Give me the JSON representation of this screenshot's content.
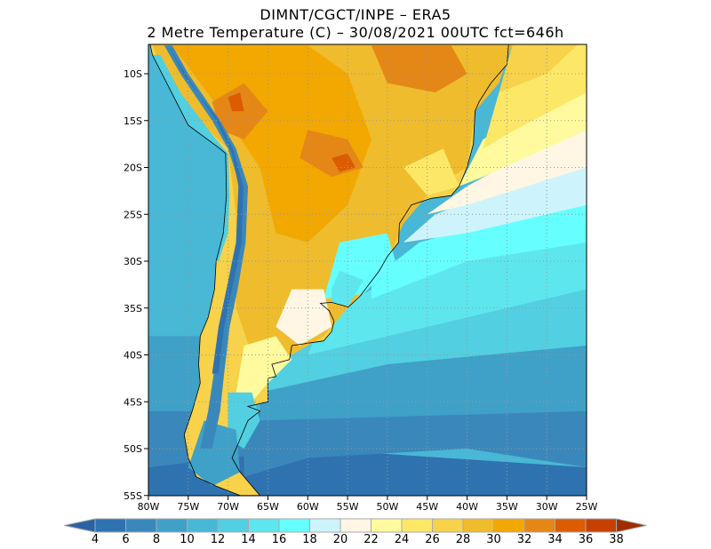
{
  "title": {
    "line1": "DIMNT/CGCT/INPE –  ERA5",
    "line2": "2 Metre Temperature (C) –  30/08/2021 00UTC fct=646h"
  },
  "map": {
    "lon_range": [
      -80,
      -25
    ],
    "lat_range": [
      -55,
      -7
    ],
    "lat_labels": [
      "10S",
      "15S",
      "20S",
      "25S",
      "30S",
      "35S",
      "40S",
      "45S",
      "50S",
      "55S"
    ],
    "lat_values": [
      -10,
      -15,
      -20,
      -25,
      -30,
      -35,
      -40,
      -45,
      -50,
      -55
    ],
    "lon_labels": [
      "80W",
      "75W",
      "70W",
      "65W",
      "60W",
      "55W",
      "50W",
      "45W",
      "40W",
      "35W",
      "30W",
      "25W"
    ],
    "lon_values": [
      -80,
      -75,
      -70,
      -65,
      -60,
      -55,
      -50,
      -45,
      -40,
      -35,
      -30,
      -25
    ],
    "variable": "2 m temperature (C)"
  },
  "colorbar": {
    "labels": [
      "4",
      "6",
      "8",
      "10",
      "12",
      "14",
      "16",
      "18",
      "20",
      "22",
      "24",
      "26",
      "28",
      "30",
      "32",
      "34",
      "36",
      "38"
    ],
    "colors": [
      "#2a62a6",
      "#2f72b0",
      "#3a88bb",
      "#3fa0c8",
      "#49b7d6",
      "#52cfe0",
      "#5ee6ee",
      "#66ffff",
      "#cdf4fc",
      "#fff6e4",
      "#fffa9e",
      "#fde767",
      "#f7d24a",
      "#eebc2d",
      "#f2a800",
      "#e58716",
      "#dc5c00",
      "#c64100",
      "#a02c00"
    ]
  }
}
